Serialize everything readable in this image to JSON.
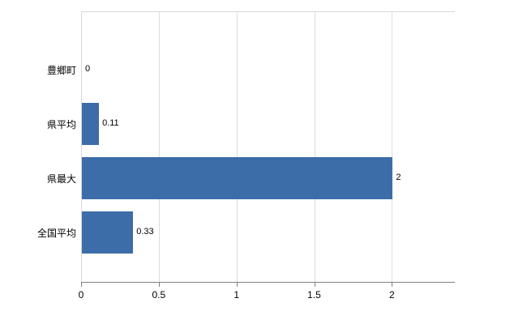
{
  "chart_data": {
    "type": "bar",
    "orientation": "horizontal",
    "title": "",
    "xlabel": "",
    "ylabel": "",
    "categories": [
      "豊郷町",
      "県平均",
      "県最大",
      "全国平均"
    ],
    "values": [
      0,
      0.11,
      2,
      0.33
    ],
    "value_labels": [
      "0",
      "0.11",
      "2",
      "0.33"
    ],
    "x_ticks": [
      0,
      0.5,
      1,
      1.5,
      2
    ],
    "x_tick_labels": [
      "0",
      "0.5",
      "1",
      "1.5",
      "2"
    ],
    "xlim": [
      0,
      2.4
    ],
    "grid": true,
    "legend": "none",
    "bar_color": "#3c6da8",
    "grid_color": "#dcdcdc",
    "axis_color": "#808080",
    "background_color": "#ffffff"
  }
}
